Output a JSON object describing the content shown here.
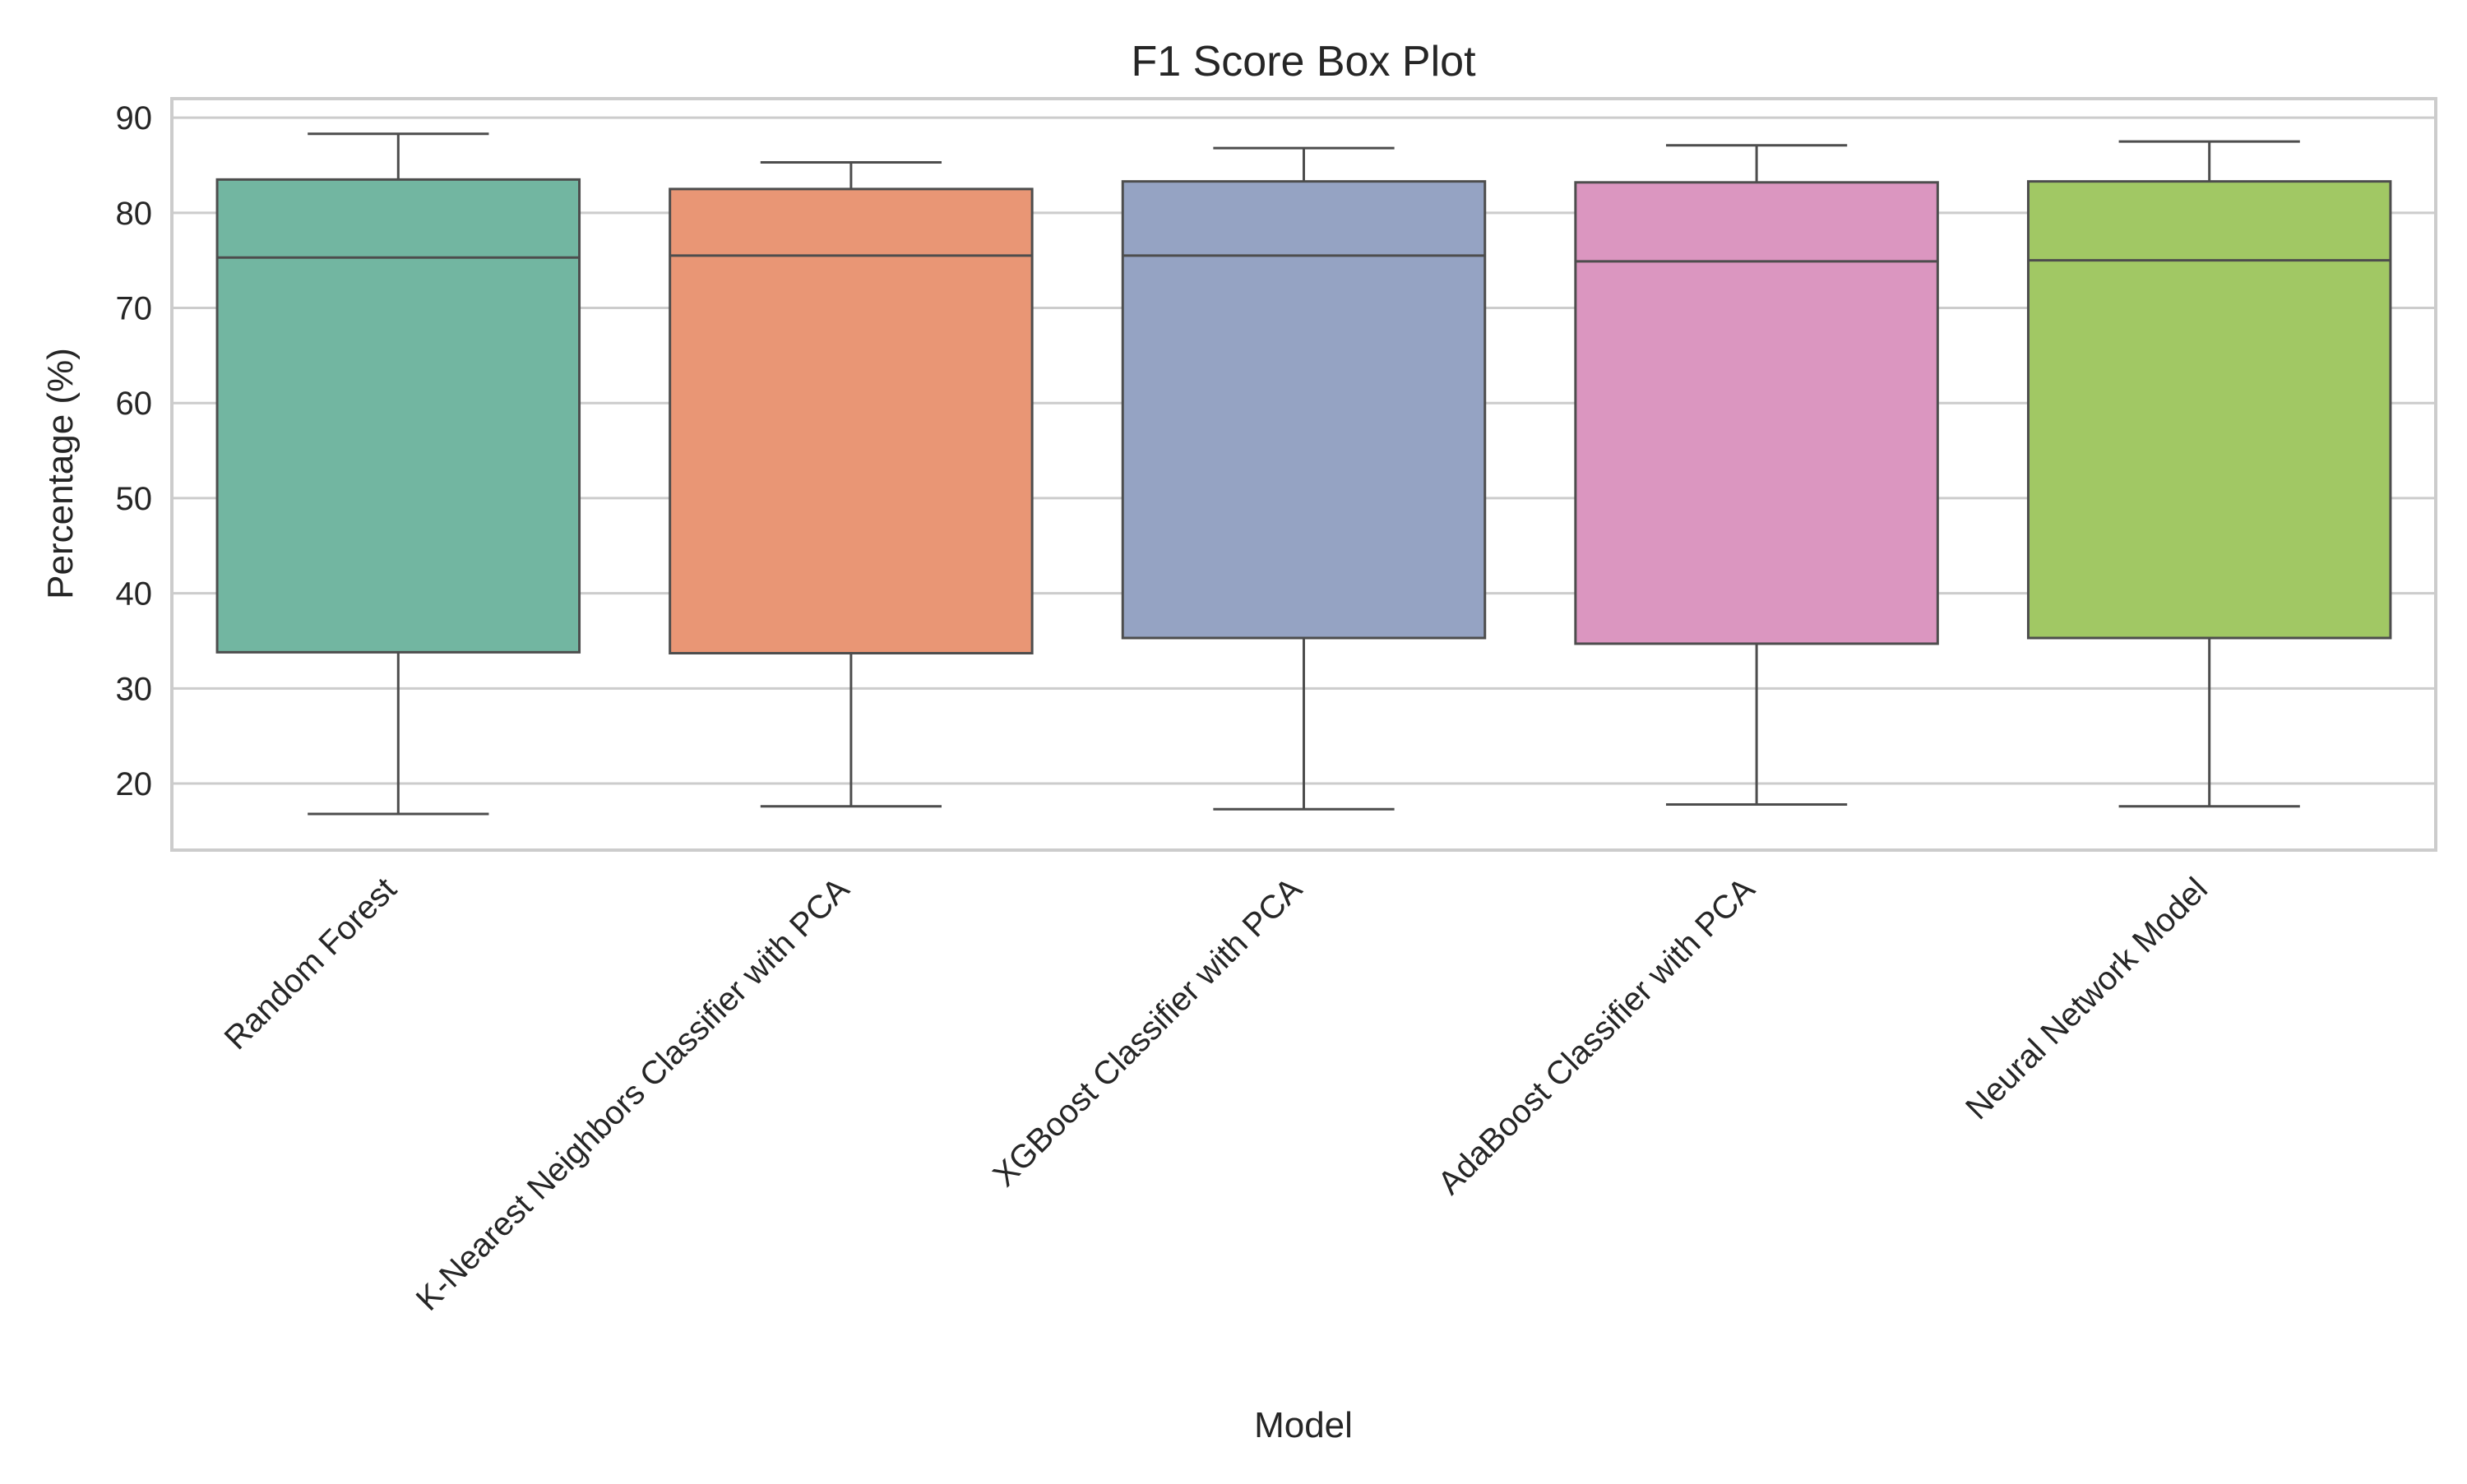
{
  "chart_data": {
    "type": "box",
    "title": "F1 Score Box Plot",
    "xlabel": "Model",
    "ylabel": "Percentage (%)",
    "ylim": [
      13,
      92
    ],
    "yticks": [
      20,
      30,
      40,
      50,
      60,
      70,
      80,
      90
    ],
    "grid": "horizontal",
    "legend": "none",
    "categories": [
      "Random Forest",
      "K-Nearest Neighbors Classifier with PCA",
      "XGBoost Classifier with PCA",
      "AdaBoost Classifier with PCA",
      "Neural Network Model"
    ],
    "boxes": [
      {
        "whisker_low": 16.8,
        "q1": 33.8,
        "median": 75.3,
        "q3": 83.5,
        "whisker_high": 88.3,
        "color": "#72b6a1"
      },
      {
        "whisker_low": 17.6,
        "q1": 33.7,
        "median": 75.5,
        "q3": 82.5,
        "whisker_high": 85.3,
        "color": "#e99675"
      },
      {
        "whisker_low": 17.3,
        "q1": 35.3,
        "median": 75.5,
        "q3": 83.3,
        "whisker_high": 86.8,
        "color": "#95a3c3"
      },
      {
        "whisker_low": 17.8,
        "q1": 34.7,
        "median": 74.9,
        "q3": 83.2,
        "whisker_high": 87.1,
        "color": "#db96c0"
      },
      {
        "whisker_low": 17.6,
        "q1": 35.3,
        "median": 75.0,
        "q3": 83.3,
        "whisker_high": 87.5,
        "color": "#a1c864"
      }
    ]
  },
  "colors": {
    "grid": "#cccccc",
    "frame": "#cccccc",
    "box_edge": "#4d4d4d",
    "text": "#262626"
  }
}
